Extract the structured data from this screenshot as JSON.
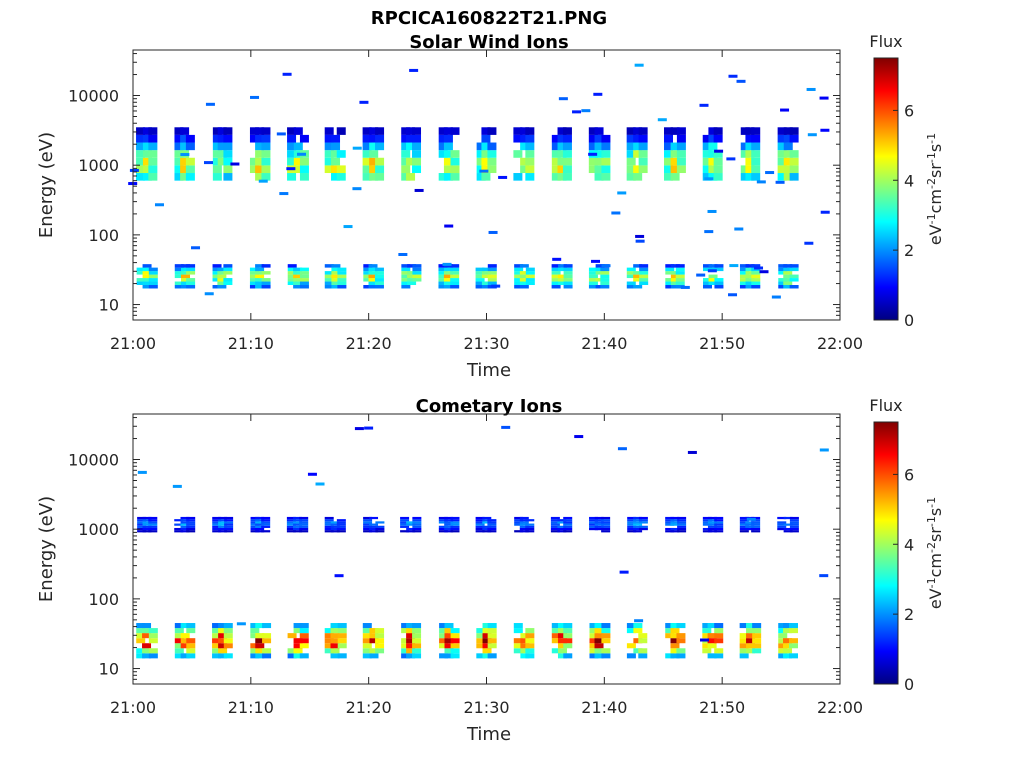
{
  "figure_title": "RPCICA160822T21.PNG",
  "colorbar": {
    "title": "Flux",
    "label": "eV-1cm-2sr-1s-1",
    "ticks": [
      "0",
      "2",
      "4",
      "6"
    ],
    "range": [
      0,
      7.5
    ],
    "colormap": "jet"
  },
  "chart_data": [
    {
      "type": "heatmap",
      "title": "Solar Wind Ions",
      "xlabel": "Time",
      "ylabel": "Energy (eV)",
      "x_ticks": [
        "21:00",
        "21:10",
        "21:20",
        "21:30",
        "21:40",
        "21:50",
        "22:00"
      ],
      "x_range": [
        "21:00",
        "22:00"
      ],
      "y_ticks": [
        "10",
        "100",
        "1000",
        "10000"
      ],
      "y_scale": "log",
      "y_range": [
        6,
        45000
      ],
      "bands": [
        {
          "energy_range": [
            600,
            3500
          ],
          "peak_energy": 1000,
          "peak_flux": 4.5,
          "period_min": 3.2
        },
        {
          "energy_range": [
            17,
            38
          ],
          "peak_energy": 25,
          "peak_flux": 4.5,
          "period_min": 3.2
        }
      ]
    },
    {
      "type": "heatmap",
      "title": "Cometary Ions",
      "xlabel": "Time",
      "ylabel": "Energy (eV)",
      "x_ticks": [
        "21:00",
        "21:10",
        "21:20",
        "21:30",
        "21:40",
        "21:50",
        "22:00"
      ],
      "x_range": [
        "21:00",
        "22:00"
      ],
      "y_ticks": [
        "10",
        "100",
        "1000",
        "10000"
      ],
      "y_scale": "log",
      "y_range": [
        6,
        45000
      ],
      "bands": [
        {
          "energy_range": [
            900,
            1500
          ],
          "peak_energy": 1200,
          "peak_flux": 2.0,
          "period_min": 3.2
        },
        {
          "energy_range": [
            14,
            45
          ],
          "peak_energy": 25,
          "peak_flux": 6.5,
          "period_min": 3.2
        }
      ]
    }
  ]
}
